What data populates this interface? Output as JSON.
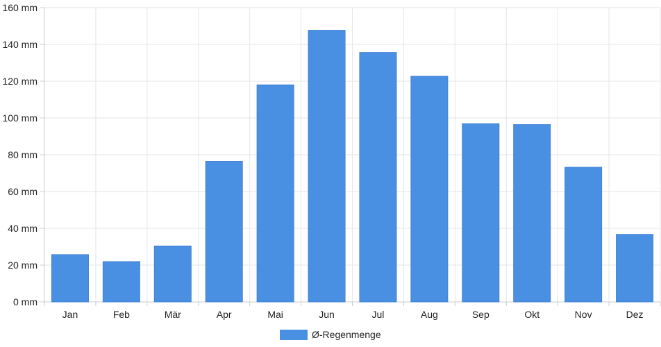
{
  "chart_data": {
    "type": "bar",
    "categories": [
      "Jan",
      "Feb",
      "Mär",
      "Apr",
      "Mai",
      "Jun",
      "Jul",
      "Aug",
      "Sep",
      "Okt",
      "Nov",
      "Dez"
    ],
    "series": [
      {
        "name": "Ø-Regenmenge",
        "values": [
          25.7,
          21.9,
          30.4,
          76.4,
          118.0,
          147.7,
          135.6,
          122.7,
          96.9,
          96.4,
          73.2,
          36.7
        ],
        "color": "#4a90e2"
      }
    ],
    "ylim": [
      0,
      160
    ],
    "yticks": [
      0,
      20,
      40,
      60,
      80,
      100,
      120,
      140,
      160
    ],
    "ytick_labels": [
      "0 mm",
      "20 mm",
      "40 mm",
      "60 mm",
      "80 mm",
      "100 mm",
      "120 mm",
      "140 mm",
      "160 mm"
    ],
    "grid": true,
    "legend_position": "bottom"
  }
}
